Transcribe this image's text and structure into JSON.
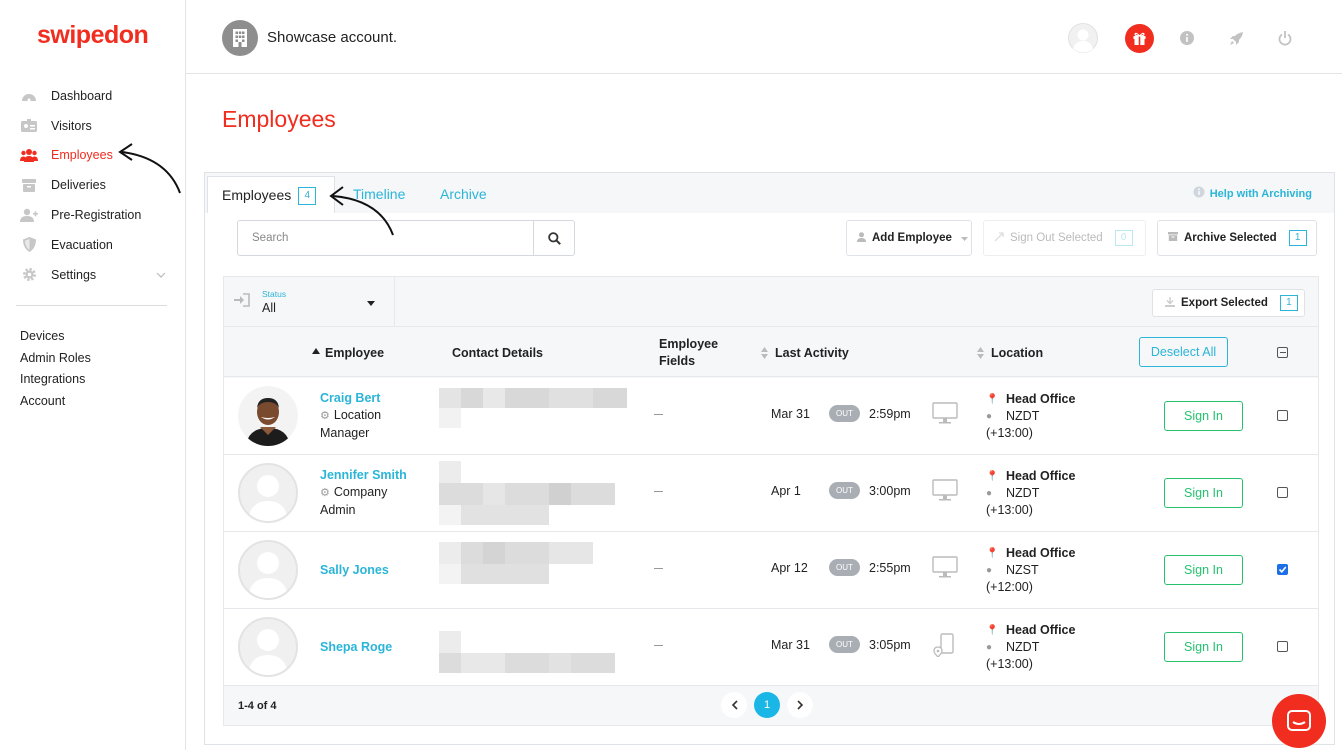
{
  "app": {
    "logo": "swipedon",
    "account_name": "Showcase account."
  },
  "sidebar": {
    "items": [
      {
        "label": "Dashboard",
        "icon": "dashboard-icon"
      },
      {
        "label": "Visitors",
        "icon": "visitors-icon"
      },
      {
        "label": "Employees",
        "icon": "employees-icon",
        "active": true
      },
      {
        "label": "Deliveries",
        "icon": "deliveries-icon"
      },
      {
        "label": "Pre-Registration",
        "icon": "pre-registration-icon"
      },
      {
        "label": "Evacuation",
        "icon": "evacuation-icon"
      },
      {
        "label": "Settings",
        "icon": "settings-icon"
      }
    ],
    "secondary": [
      "Devices",
      "Admin Roles",
      "Integrations",
      "Account"
    ]
  },
  "page": {
    "title": "Employees"
  },
  "tabs": {
    "employees": "Employees",
    "employees_count": "4",
    "timeline": "Timeline",
    "archive": "Archive",
    "help": "Help with Archiving"
  },
  "toolbar": {
    "search_placeholder": "Search",
    "add_employee": "Add Employee",
    "sign_out_selected": "Sign Out Selected",
    "sign_out_count": "0",
    "archive_selected": "Archive Selected",
    "archive_count": "1",
    "export_selected": "Export Selected",
    "export_count": "1"
  },
  "filter": {
    "status_label": "Status",
    "status_value": "All"
  },
  "columns": {
    "employee": "Employee",
    "contact": "Contact Details",
    "fields_1": "Employee",
    "fields_2": "Fields",
    "last_activity": "Last Activity",
    "location": "Location",
    "deselect_all": "Deselect All"
  },
  "rows": [
    {
      "name": "Craig Bert",
      "role_1": "Location",
      "role_2": "Manager",
      "date": "Mar 31",
      "status": "OUT",
      "time": "2:59pm",
      "device": "monitor",
      "office": "Head Office",
      "tz": "NZDT",
      "offset": "(+13:00)",
      "action": "Sign In",
      "checked": false
    },
    {
      "name": "Jennifer Smith",
      "role_1": "Company",
      "role_2": "Admin",
      "date": "Apr 1",
      "status": "OUT",
      "time": "3:00pm",
      "device": "monitor",
      "office": "Head Office",
      "tz": "NZDT",
      "offset": "(+13:00)",
      "action": "Sign In",
      "checked": false
    },
    {
      "name": "Sally Jones",
      "role_1": "",
      "role_2": "",
      "date": "Apr 12",
      "status": "OUT",
      "time": "2:55pm",
      "device": "monitor",
      "office": "Head Office",
      "tz": "NZST",
      "offset": "(+12:00)",
      "action": "Sign In",
      "checked": true
    },
    {
      "name": "Shepa Roge",
      "role_1": "",
      "role_2": "",
      "date": "Mar 31",
      "status": "OUT",
      "time": "3:05pm",
      "device": "mobile-location",
      "office": "Head Office",
      "tz": "NZDT",
      "offset": "(+13:00)",
      "action": "Sign In",
      "checked": false
    }
  ],
  "pagination": {
    "range": "1-4 of 4",
    "current": "1"
  },
  "colors": {
    "brand": "#f02d1f",
    "accent": "#2bb5d8",
    "success": "#25c26e"
  }
}
